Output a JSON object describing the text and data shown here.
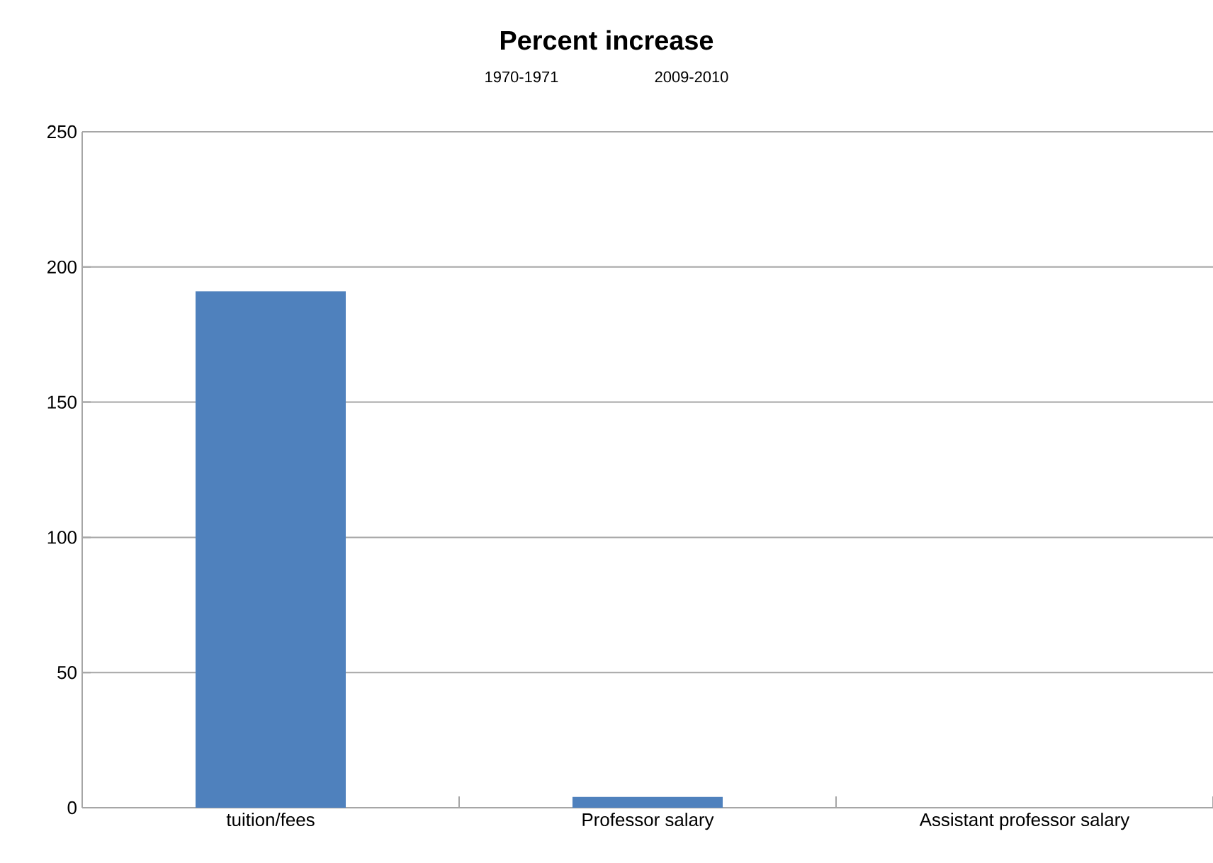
{
  "chart_data": {
    "type": "bar",
    "title": "Percent increase",
    "annotations": [
      "1970-1971",
      "2009-2010"
    ],
    "categories": [
      "tuition/fees",
      "Professor salary",
      "Assistant professor salary"
    ],
    "values": [
      191,
      4,
      0
    ],
    "color": "#4f81bd",
    "ylim": [
      0,
      250
    ],
    "yticks": [
      0,
      50,
      100,
      150,
      200,
      250
    ],
    "grid": "y"
  }
}
